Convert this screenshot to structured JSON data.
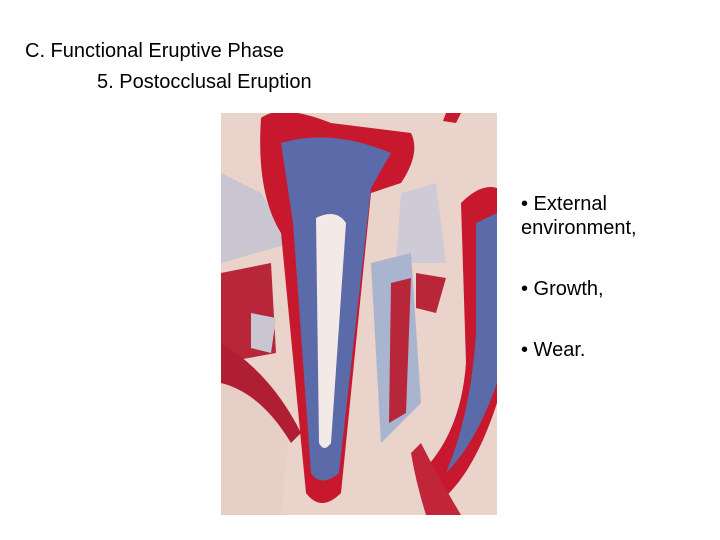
{
  "slide": {
    "title": "C. Functional Eruptive Phase",
    "subtitle": "5. Postocclusal Eruption",
    "bullets": [
      "• External environment,",
      "• Growth,",
      "• Wear."
    ]
  }
}
